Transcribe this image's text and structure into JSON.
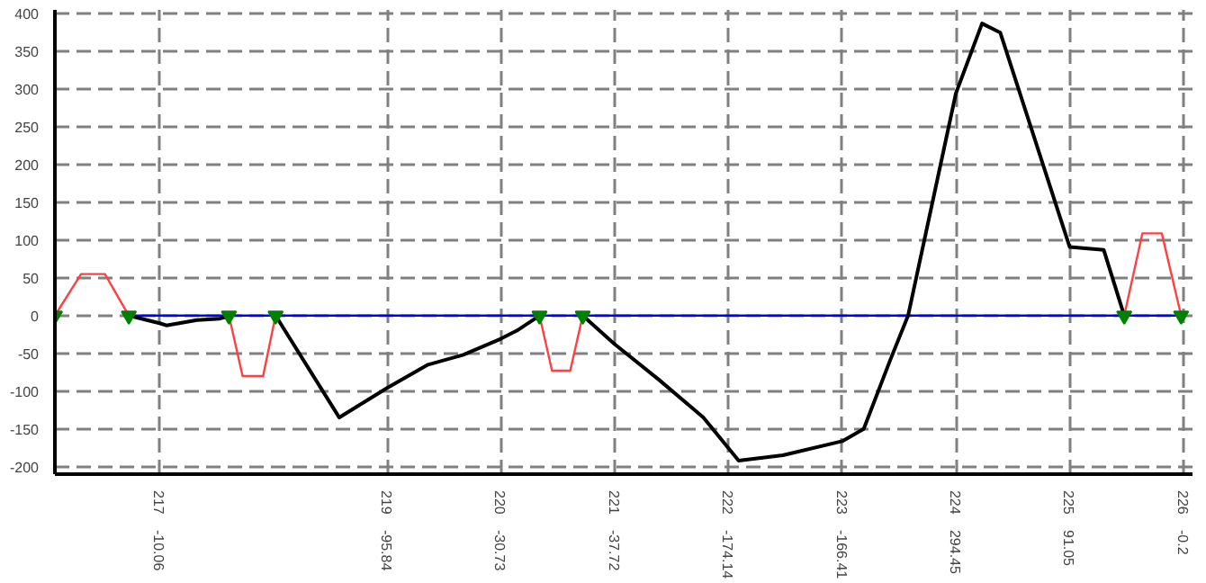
{
  "chart_data": {
    "type": "line",
    "xlim": [
      216.08,
      226.08
    ],
    "ylim": [
      -210,
      405
    ],
    "xticks": [
      217,
      219,
      220,
      221,
      222,
      223,
      224,
      225,
      226
    ],
    "annotations": [
      "-10.06",
      "-95.84",
      "-30.73",
      "-37.72",
      "-174.14",
      "-166.41",
      "294.45",
      "91.05",
      "-0.2"
    ],
    "yticks": [
      -200,
      -150,
      -100,
      -50,
      0,
      50,
      100,
      150,
      200,
      250,
      300,
      350,
      400
    ],
    "grid": true,
    "series": [
      {
        "color": "#0000ff",
        "x": [
          216.73,
          226.0
        ],
        "values": [
          0,
          0
        ]
      },
      {
        "color": "#000000",
        "x": [
          216.73,
          217,
          217.06,
          217.33,
          217.53,
          217.61
        ],
        "values": [
          0,
          -10.06,
          -13,
          -6,
          -4,
          -1
        ]
      },
      {
        "color": "#000000",
        "x": [
          218.02,
          218.58,
          219,
          219.36,
          219.67,
          220,
          220.14,
          220.34
        ],
        "values": [
          0,
          -135,
          -95.84,
          -65,
          -52,
          -30.73,
          -20,
          0
        ]
      },
      {
        "color": "#000000",
        "x": [
          220.72,
          221,
          221.39,
          221.78,
          222.09,
          222.48,
          223,
          223.19,
          223.42,
          223.58,
          224,
          224.23,
          224.39,
          225,
          225.3,
          225.48
        ],
        "values": [
          0,
          -37.72,
          -85,
          -135,
          -192,
          -185,
          -166.41,
          -150,
          -60,
          0,
          294.45,
          387,
          375,
          91.05,
          87,
          0
        ]
      },
      {
        "color": "#ff4040",
        "x": [
          216.08,
          216.31,
          216.52,
          216.73
        ],
        "values": [
          0,
          55,
          55,
          0
        ]
      },
      {
        "color": "#ff4040",
        "x": [
          217.61,
          217.73,
          217.91,
          218.02
        ],
        "values": [
          0,
          -80,
          -80,
          0
        ]
      },
      {
        "color": "#ff4040",
        "x": [
          220.34,
          220.45,
          220.61,
          220.72
        ],
        "values": [
          0,
          -73,
          -73,
          0
        ]
      },
      {
        "color": "#ff4040",
        "x": [
          225.48,
          225.64,
          225.81,
          225.98
        ],
        "values": [
          0,
          109,
          109,
          0
        ]
      },
      {
        "type": "scatter",
        "marker": "triangle",
        "color": "#008000",
        "x": [
          216.08,
          216.73,
          217.61,
          218.02,
          220.34,
          220.72,
          225.48,
          225.98
        ],
        "values": [
          0,
          0,
          0,
          0,
          0,
          0,
          0,
          0
        ]
      }
    ]
  }
}
